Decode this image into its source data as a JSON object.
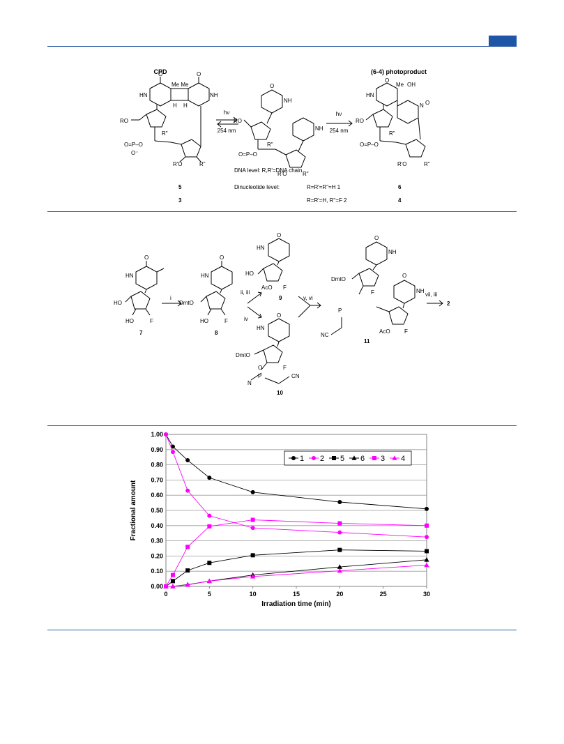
{
  "scheme1": {
    "cpd_label": "CPD",
    "photoproduct_label": "(6-4) photoproduct",
    "arrow1_top": "hν",
    "arrow1_bottom": "254 nm",
    "arrow2_top": "hν",
    "arrow2_bottom": "254 nm",
    "dna_level": "DNA level: R,R'=DNA chain",
    "dinucleotide_label": "Dinucleotide level:",
    "dinucleotide_row1": "R=R'=R\"=H 1",
    "dinucleotide_row2": "R=R'=H, R\"=F 2",
    "cpd_num_top": "5",
    "cpd_num_bottom": "3",
    "pp_num_top": "6",
    "pp_num_bottom": "4",
    "atoms": {
      "O": "O",
      "HN": "HN",
      "NH": "NH",
      "N": "N",
      "Me": "Me",
      "MeMe": "Me Me",
      "H": "H",
      "OH": "OH",
      "RO": "RO",
      "RpO": "R'O",
      "Rpp": "R\"",
      "P": "O=P–O",
      "Om": "O⁻"
    }
  },
  "scheme2": {
    "reagents": {
      "i": "i",
      "ii_iii": "ii, iii",
      "iv": "iv",
      "v_vi": "v, vi",
      "vii_iii": "vii, iii"
    },
    "compounds": {
      "c7": "7",
      "c8": "8",
      "c9": "9",
      "c10": "10",
      "c11": "11",
      "c2": "2"
    },
    "atoms": {
      "HO": "HO",
      "F": "F",
      "DmtO": "DmtO",
      "AcO": "AcO",
      "NC": "NC",
      "CN": "CN",
      "P": "P",
      "N": "N",
      "O": "O",
      "HN": "HN",
      "NH": "NH"
    }
  },
  "chart_data": {
    "type": "line",
    "xlabel": "Irradiation time (min)",
    "ylabel": "Fractional amount",
    "xlim": [
      0,
      30
    ],
    "ylim": [
      0,
      1.0
    ],
    "xticks": [
      "0",
      "5",
      "10",
      "15",
      "20",
      "25",
      "30"
    ],
    "yticks": [
      "0.00",
      "0.10",
      "0.20",
      "0.30",
      "0.40",
      "0.50",
      "0.60",
      "0.70",
      "0.80",
      "0.90",
      "1.00"
    ],
    "grid": true,
    "legend_placement": "top-right",
    "x": [
      0,
      0.8,
      2.5,
      5,
      10,
      20,
      30
    ],
    "series": [
      {
        "name": "1",
        "color": "#000000",
        "marker": "circle",
        "values": [
          1.0,
          0.92,
          0.83,
          0.715,
          0.62,
          0.555,
          0.51
        ]
      },
      {
        "name": "2",
        "color": "#ff00ff",
        "marker": "circle",
        "values": [
          1.0,
          0.885,
          0.63,
          0.465,
          0.385,
          0.355,
          0.325
        ]
      },
      {
        "name": "5",
        "color": "#000000",
        "marker": "square",
        "values": [
          0.0,
          0.035,
          0.105,
          0.155,
          0.205,
          0.24,
          0.232
        ]
      },
      {
        "name": "6",
        "color": "#000000",
        "marker": "triangle",
        "values": [
          0.0,
          0.0,
          0.012,
          0.035,
          0.075,
          0.128,
          0.175
        ]
      },
      {
        "name": "3",
        "color": "#ff00ff",
        "marker": "square",
        "values": [
          0.0,
          0.075,
          0.26,
          0.395,
          0.438,
          0.415,
          0.4
        ]
      },
      {
        "name": "4",
        "color": "#ff00ff",
        "marker": "triangle",
        "values": [
          0.0,
          0.0,
          0.01,
          0.035,
          0.065,
          0.103,
          0.14
        ]
      }
    ]
  }
}
